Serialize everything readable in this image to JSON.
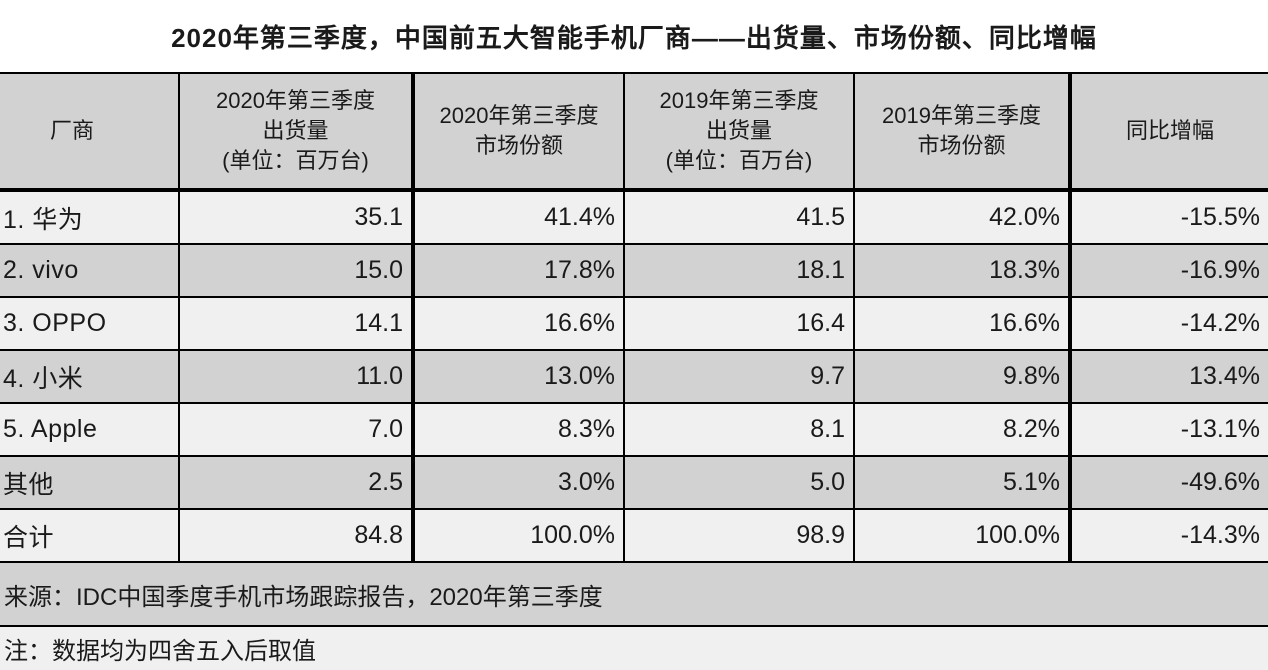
{
  "title": "2020年第三季度，中国前五大智能手机厂商——出货量、市场份额、同比增幅",
  "headers": {
    "vendor": "厂商",
    "ship2020": [
      "2020年第三季度",
      "出货量",
      "(单位：百万台)"
    ],
    "share2020": [
      "2020年第三季度",
      "市场份额"
    ],
    "ship2019": [
      "2019年第三季度",
      "出货量",
      "(单位：百万台)"
    ],
    "share2019": [
      "2019年第三季度",
      "市场份额"
    ],
    "yoy": "同比增幅"
  },
  "rows": [
    {
      "cells": [
        "1. 华为",
        "35.1",
        "41.4%",
        "41.5",
        "42.0%",
        "-15.5%"
      ]
    },
    {
      "cells": [
        "2. vivo",
        "15.0",
        "17.8%",
        "18.1",
        "18.3%",
        "-16.9%"
      ]
    },
    {
      "cells": [
        "3. OPPO",
        "14.1",
        "16.6%",
        "16.4",
        "16.6%",
        "-14.2%"
      ]
    },
    {
      "cells": [
        "4. 小米",
        "11.0",
        "13.0%",
        "9.7",
        "9.8%",
        "13.4%"
      ]
    },
    {
      "cells": [
        "5. Apple",
        "7.0",
        "8.3%",
        "8.1",
        "8.2%",
        "-13.1%"
      ]
    },
    {
      "cells": [
        "其他",
        "2.5",
        "3.0%",
        "5.0",
        "5.1%",
        "-49.6%"
      ]
    },
    {
      "cells": [
        "合计",
        "84.8",
        "100.0%",
        "98.9",
        "100.0%",
        "-14.3%"
      ]
    }
  ],
  "source": "来源：IDC中国季度手机市场跟踪报告，2020年第三季度",
  "note": "注：数据均为四舍五入后取值",
  "colors": {
    "page_bg": "#ffffff",
    "header_bg": "#d2d2d2",
    "row_odd_bg": "#f0f0f0",
    "row_even_bg": "#d2d2d2",
    "border": "#000000",
    "text": "#1a1a1a"
  },
  "chart_data": {
    "type": "table",
    "title": "2020年第三季度，中国前五大智能手机厂商——出货量、市场份额、同比增幅",
    "columns": [
      "厂商",
      "2020年第三季度出货量 (单位：百万台)",
      "2020年第三季度市场份额",
      "2019年第三季度出货量 (单位：百万台)",
      "2019年第三季度市场份额",
      "同比增幅"
    ],
    "rows": [
      {
        "vendor": "1. 华为",
        "shipments_2020_q3_m": 35.1,
        "share_2020_q3_pct": 41.4,
        "shipments_2019_q3_m": 41.5,
        "share_2019_q3_pct": 42.0,
        "yoy_growth_pct": -15.5
      },
      {
        "vendor": "2. vivo",
        "shipments_2020_q3_m": 15.0,
        "share_2020_q3_pct": 17.8,
        "shipments_2019_q3_m": 18.1,
        "share_2019_q3_pct": 18.3,
        "yoy_growth_pct": -16.9
      },
      {
        "vendor": "3. OPPO",
        "shipments_2020_q3_m": 14.1,
        "share_2020_q3_pct": 16.6,
        "shipments_2019_q3_m": 16.4,
        "share_2019_q3_pct": 16.6,
        "yoy_growth_pct": -14.2
      },
      {
        "vendor": "4. 小米",
        "shipments_2020_q3_m": 11.0,
        "share_2020_q3_pct": 13.0,
        "shipments_2019_q3_m": 9.7,
        "share_2019_q3_pct": 9.8,
        "yoy_growth_pct": 13.4
      },
      {
        "vendor": "5. Apple",
        "shipments_2020_q3_m": 7.0,
        "share_2020_q3_pct": 8.3,
        "shipments_2019_q3_m": 8.1,
        "share_2019_q3_pct": 8.2,
        "yoy_growth_pct": -13.1
      },
      {
        "vendor": "其他",
        "shipments_2020_q3_m": 2.5,
        "share_2020_q3_pct": 3.0,
        "shipments_2019_q3_m": 5.0,
        "share_2019_q3_pct": 5.1,
        "yoy_growth_pct": -49.6
      },
      {
        "vendor": "合计",
        "shipments_2020_q3_m": 84.8,
        "share_2020_q3_pct": 100.0,
        "shipments_2019_q3_m": 98.9,
        "share_2019_q3_pct": 100.0,
        "yoy_growth_pct": -14.3
      }
    ],
    "source": "来源：IDC中国季度手机市场跟踪报告，2020年第三季度",
    "note": "注：数据均为四舍五入后取值"
  }
}
